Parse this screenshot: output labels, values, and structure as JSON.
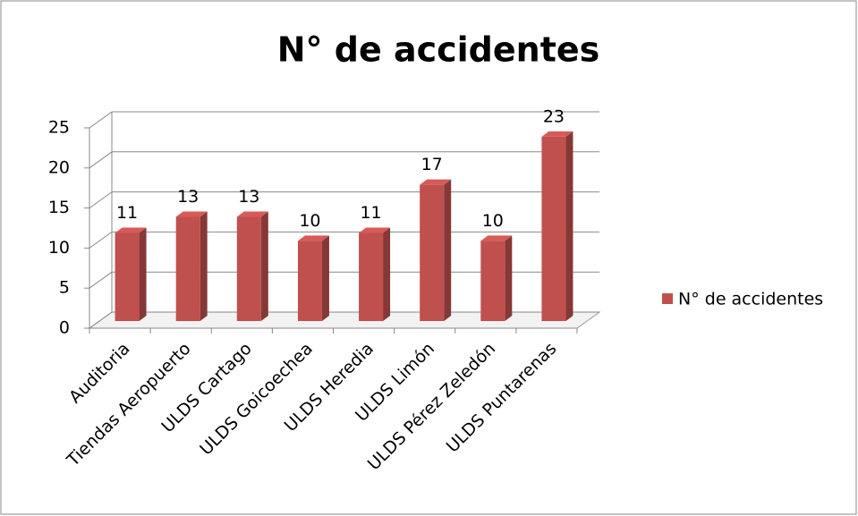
{
  "chart_data": {
    "type": "bar3d",
    "title": "N° de accidentes",
    "categories": [
      "Auditoria",
      "Tiendas Aeropuerto",
      "ULDS Cartago",
      "ULDS Goicoechea",
      "ULDS Heredia",
      "ULDS Limón",
      "ULDS Pérez Zeledón",
      "ULDS Puntarenas"
    ],
    "series": [
      {
        "name": "N° de accidentes",
        "color": "#c0504d",
        "values": [
          11,
          13,
          13,
          10,
          11,
          17,
          10,
          23
        ]
      }
    ],
    "ylim": [
      0,
      25
    ],
    "yticks": [
      0,
      5,
      10,
      15,
      20,
      25
    ],
    "grid": true,
    "legend": "right"
  }
}
